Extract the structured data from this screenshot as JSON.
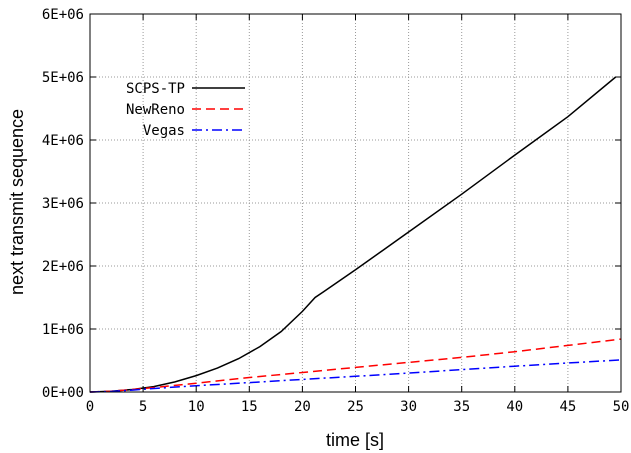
{
  "chart_data": {
    "type": "line",
    "xlabel": "time [s]",
    "ylabel": "next transmit sequence",
    "xlim": [
      0,
      50
    ],
    "ylim": [
      0,
      6000000
    ],
    "xticks": [
      0,
      5,
      10,
      15,
      20,
      25,
      30,
      35,
      40,
      45,
      50
    ],
    "yticks": [
      0,
      1000000,
      2000000,
      3000000,
      4000000,
      5000000,
      6000000
    ],
    "xtick_labels": [
      "0",
      "5",
      "10",
      "15",
      "20",
      "25",
      "30",
      "35",
      "40",
      "45",
      "50"
    ],
    "ytick_labels": [
      "0E+00",
      "1E+06",
      "2E+06",
      "3E+06",
      "4E+06",
      "5E+06",
      "6E+06"
    ],
    "grid": true,
    "legend_position": "top-left",
    "series": [
      {
        "name": "SCPS-TP",
        "color": "#000000",
        "dash": "solid",
        "x": [
          0,
          2,
          4,
          6,
          8,
          10,
          12,
          14,
          16,
          18,
          20,
          21.2,
          22,
          25,
          30,
          35,
          40,
          45,
          49.5
        ],
        "y": [
          0,
          12000,
          40000,
          85000,
          160000,
          260000,
          380000,
          530000,
          720000,
          960000,
          1280000,
          1500000,
          1590000,
          1940000,
          2540000,
          3140000,
          3760000,
          4370000,
          5000000
        ]
      },
      {
        "name": "NewReno",
        "color": "#ff0000",
        "dash": "dashed",
        "x": [
          0,
          2,
          4,
          6,
          10,
          15,
          20,
          25,
          30,
          35,
          40,
          45,
          50
        ],
        "y": [
          0,
          12000,
          40000,
          70000,
          140000,
          230000,
          310000,
          390000,
          470000,
          550000,
          640000,
          740000,
          840000
        ]
      },
      {
        "name": "Vegas",
        "color": "#0000ff",
        "dash": "dashdot",
        "x": [
          0,
          2,
          4,
          6,
          10,
          15,
          20,
          25,
          30,
          35,
          40,
          45,
          50
        ],
        "y": [
          0,
          8000,
          30000,
          55000,
          100000,
          150000,
          200000,
          250000,
          300000,
          355000,
          410000,
          460000,
          510000
        ]
      }
    ]
  }
}
